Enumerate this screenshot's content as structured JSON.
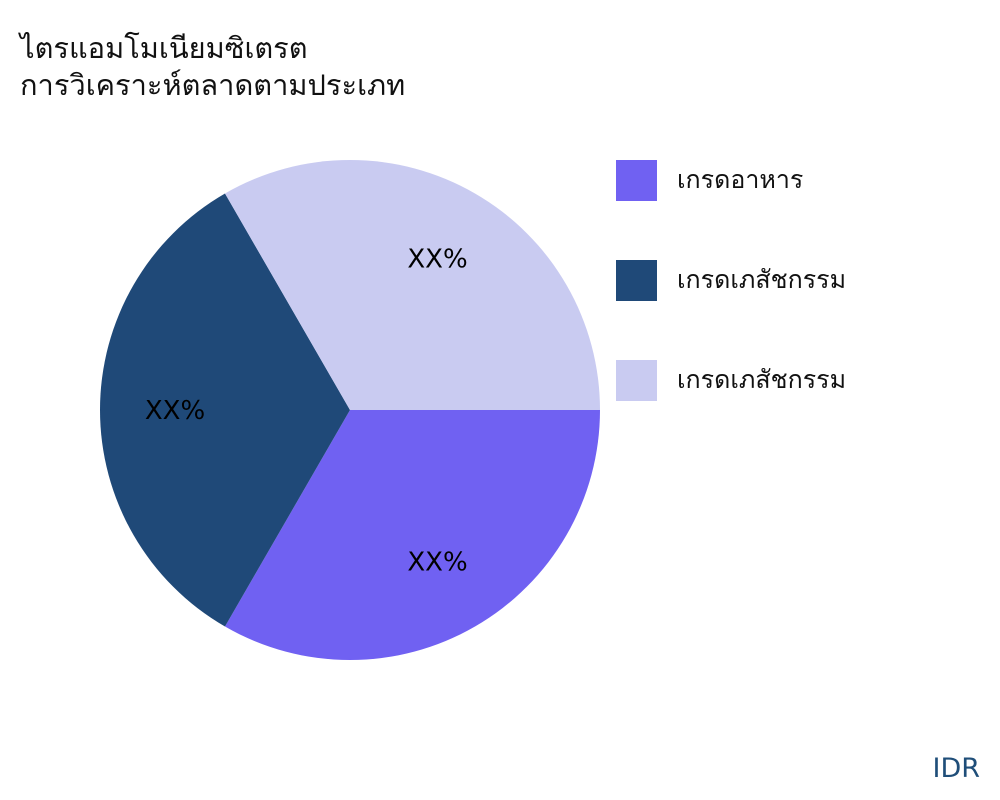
{
  "title_lines": [
    "ไตรแอมโมเนียมซิเตรต",
    "การวิเคราะห์ตลาดตามประเภท"
  ],
  "brand": "IDR",
  "chart_data": {
    "type": "pie",
    "start_angle_deg": 0,
    "direction": "clockwise",
    "slices": [
      {
        "name": "เกรดอาหาร",
        "value": 33.3,
        "label": "XX%",
        "color": "#7061f2"
      },
      {
        "name": "เกรดเภสัชกรรม",
        "value": 33.3,
        "label": "XX%",
        "color": "#1f4978"
      },
      {
        "name": "เกรดเภสัชกรรม",
        "value": 33.3,
        "label": "XX%",
        "color": "#c9cbf1"
      }
    ],
    "legend_position": "right"
  }
}
